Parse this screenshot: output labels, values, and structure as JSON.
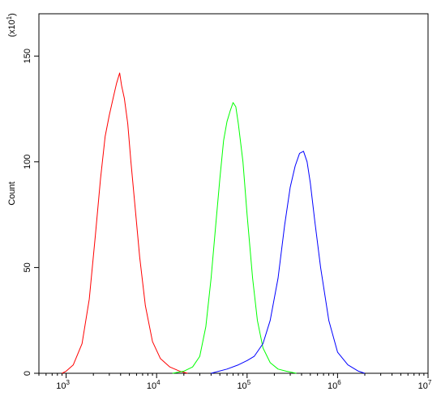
{
  "chart_data": {
    "type": "line",
    "xlabel": "",
    "ylabel": "Count",
    "y_multiplier_label": "(x10",
    "y_multiplier_exponent": "1",
    "x_scale": "log",
    "xlim": [
      500,
      10000000
    ],
    "ylim": [
      0,
      170
    ],
    "grid": false,
    "y_ticks": [
      {
        "value": 0,
        "label": "0"
      },
      {
        "value": 50,
        "label": "50"
      },
      {
        "value": 100,
        "label": "100"
      },
      {
        "value": 150,
        "label": "150"
      }
    ],
    "x_ticks": [
      {
        "value": 1000,
        "base": "10",
        "exp": "3"
      },
      {
        "value": 10000,
        "base": "10",
        "exp": "4"
      },
      {
        "value": 100000,
        "base": "10",
        "exp": "5"
      },
      {
        "value": 1000000,
        "base": "10",
        "exp": "6"
      },
      {
        "value": 10000000,
        "base": "10",
        "exp": "7"
      }
    ],
    "series": [
      {
        "color": "#ff0000",
        "x": [
          900,
          1000,
          1200,
          1500,
          1800,
          2100,
          2400,
          2700,
          3000,
          3300,
          3600,
          3900,
          4100,
          4400,
          4800,
          5200,
          5800,
          6500,
          7500,
          9000,
          11000,
          14000,
          18000,
          22000
        ],
        "y": [
          0,
          1,
          4,
          14,
          35,
          65,
          92,
          112,
          122,
          130,
          137,
          142,
          136,
          130,
          118,
          100,
          78,
          55,
          32,
          15,
          7,
          3,
          1,
          0
        ]
      },
      {
        "color": "#00ff00",
        "x": [
          15000,
          20000,
          25000,
          30000,
          35000,
          40000,
          45000,
          50000,
          55000,
          60000,
          65000,
          70000,
          75000,
          80000,
          90000,
          100000,
          115000,
          130000,
          150000,
          180000,
          220000,
          270000,
          350000
        ],
        "y": [
          0,
          1,
          3,
          8,
          22,
          45,
          70,
          92,
          110,
          119,
          124,
          128,
          126,
          118,
          100,
          75,
          45,
          25,
          12,
          5,
          2,
          1,
          0
        ]
      },
      {
        "color": "#0000ff",
        "x": [
          40000,
          60000,
          80000,
          100000,
          120000,
          150000,
          180000,
          220000,
          260000,
          300000,
          340000,
          380000,
          420000,
          460000,
          500000,
          560000,
          650000,
          800000,
          1000000,
          1300000,
          1700000,
          2000000
        ],
        "y": [
          0,
          2,
          4,
          6,
          8,
          14,
          25,
          45,
          70,
          88,
          98,
          104,
          105,
          100,
          90,
          72,
          50,
          25,
          10,
          4,
          1,
          0
        ]
      }
    ]
  }
}
